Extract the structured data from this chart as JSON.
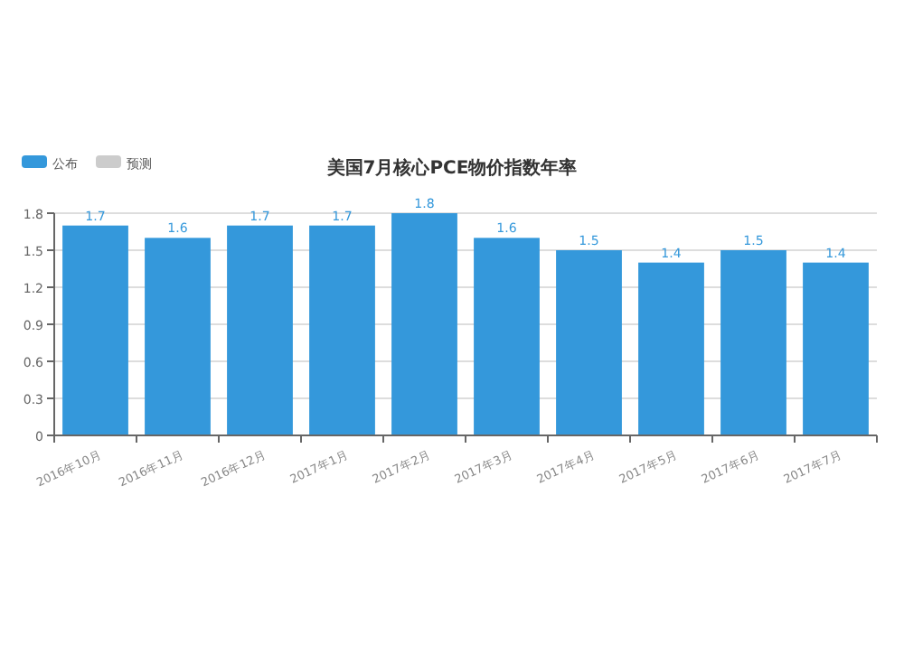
{
  "chart_data": {
    "type": "bar",
    "title": "美国7月核心PCE物价指数年率",
    "categories": [
      "2016年10月",
      "2016年11月",
      "2016年12月",
      "2017年1月",
      "2017年2月",
      "2017年3月",
      "2017年4月",
      "2017年5月",
      "2017年6月",
      "2017年7月"
    ],
    "series": [
      {
        "name": "公布",
        "color": "#3498db",
        "values": [
          1.7,
          1.6,
          1.7,
          1.7,
          1.8,
          1.6,
          1.5,
          1.4,
          1.5,
          1.4
        ]
      },
      {
        "name": "预测",
        "color": "#cccccc",
        "values": [
          null,
          null,
          null,
          null,
          null,
          null,
          null,
          null,
          null,
          null
        ]
      }
    ],
    "ylim": [
      0,
      1.8
    ],
    "yticks": [
      0,
      0.3,
      0.6,
      0.9,
      1.2,
      1.5,
      1.8
    ],
    "grid": "y",
    "legend": "top left",
    "data_labels": true
  }
}
